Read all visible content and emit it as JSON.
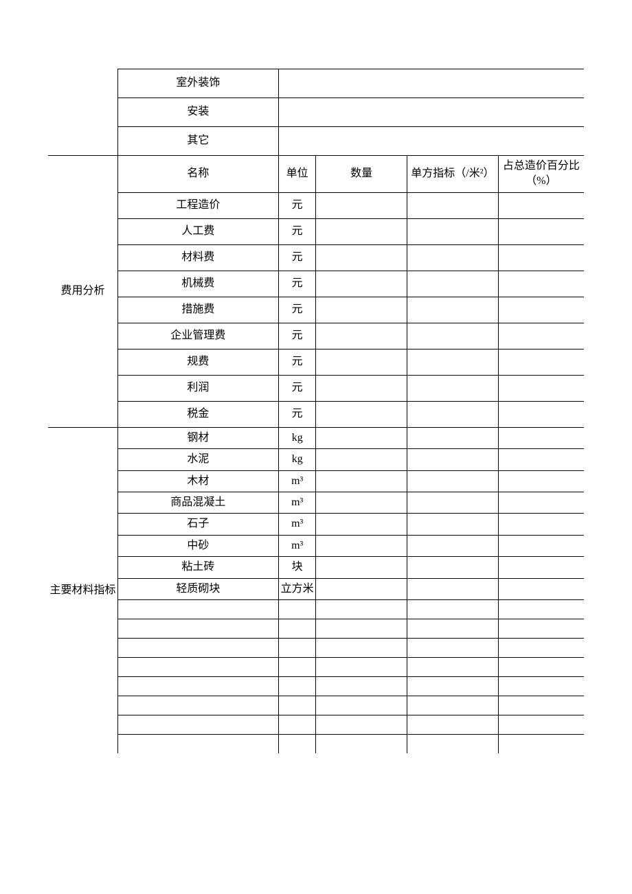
{
  "colors": {
    "border": "#000000",
    "background": "#ffffff",
    "text": "#000000"
  },
  "typography": {
    "font_family": "SimSun",
    "font_size": 16
  },
  "columns": {
    "widths_pct": [
      13,
      30,
      7,
      17,
      17,
      16
    ]
  },
  "section1": {
    "rows": [
      {
        "name": "室外装饰",
        "merged_right": true
      },
      {
        "name": "安装",
        "merged_right": true
      },
      {
        "name": "其它",
        "merged_right": true
      }
    ]
  },
  "section2": {
    "label": "费用分析",
    "header": {
      "name": "名称",
      "unit": "单位",
      "qty": "数量",
      "index": "单方指标（/米²）",
      "pct": "占总造价百分比（%）"
    },
    "rows": [
      {
        "name": "工程造价",
        "unit": "元",
        "qty": "",
        "index": "",
        "pct": ""
      },
      {
        "name": "人工费",
        "unit": "元",
        "qty": "",
        "index": "",
        "pct": ""
      },
      {
        "name": "材料费",
        "unit": "元",
        "qty": "",
        "index": "",
        "pct": ""
      },
      {
        "name": "机械费",
        "unit": "元",
        "qty": "",
        "index": "",
        "pct": ""
      },
      {
        "name": "措施费",
        "unit": "元",
        "qty": "",
        "index": "",
        "pct": ""
      },
      {
        "name": "企业管理费",
        "unit": "元",
        "qty": "",
        "index": "",
        "pct": ""
      },
      {
        "name": "规费",
        "unit": "元",
        "qty": "",
        "index": "",
        "pct": ""
      },
      {
        "name": "利润",
        "unit": "元",
        "qty": "",
        "index": "",
        "pct": ""
      },
      {
        "name": "税金",
        "unit": "元",
        "qty": "",
        "index": "",
        "pct": ""
      }
    ]
  },
  "section3": {
    "label": "主要材料指标",
    "rows": [
      {
        "name": "钢材",
        "unit": "kg",
        "qty": "",
        "index": "",
        "pct": ""
      },
      {
        "name": "水泥",
        "unit": "kg",
        "qty": "",
        "index": "",
        "pct": ""
      },
      {
        "name": "木材",
        "unit": "m³",
        "qty": "",
        "index": "",
        "pct": ""
      },
      {
        "name": "商品混凝土",
        "unit": "m³",
        "qty": "",
        "index": "",
        "pct": ""
      },
      {
        "name": "石子",
        "unit": "m³",
        "qty": "",
        "index": "",
        "pct": ""
      },
      {
        "name": "中砂",
        "unit": "m³",
        "qty": "",
        "index": "",
        "pct": ""
      },
      {
        "name": "粘土砖",
        "unit": "块",
        "qty": "",
        "index": "",
        "pct": ""
      },
      {
        "name": "轻质砌块",
        "unit": "立方米",
        "qty": "",
        "index": "",
        "pct": ""
      },
      {
        "name": "",
        "unit": "",
        "qty": "",
        "index": "",
        "pct": ""
      },
      {
        "name": "",
        "unit": "",
        "qty": "",
        "index": "",
        "pct": ""
      },
      {
        "name": "",
        "unit": "",
        "qty": "",
        "index": "",
        "pct": ""
      },
      {
        "name": "",
        "unit": "",
        "qty": "",
        "index": "",
        "pct": ""
      },
      {
        "name": "",
        "unit": "",
        "qty": "",
        "index": "",
        "pct": ""
      },
      {
        "name": "",
        "unit": "",
        "qty": "",
        "index": "",
        "pct": ""
      },
      {
        "name": "",
        "unit": "",
        "qty": "",
        "index": "",
        "pct": ""
      },
      {
        "name": "",
        "unit": "",
        "qty": "",
        "index": "",
        "pct": ""
      }
    ]
  }
}
